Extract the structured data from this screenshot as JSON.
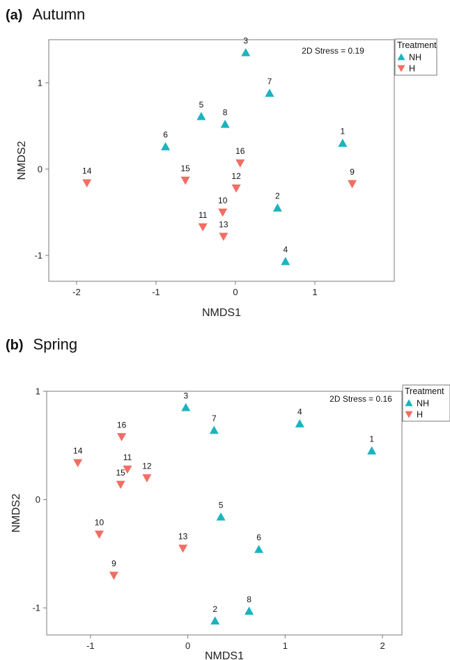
{
  "colors": {
    "NH": "#1ab4bf",
    "H": "#f26d64"
  },
  "chart_data": [
    {
      "type": "scatter",
      "panel_tag": "(a)",
      "title": "Autumn",
      "xlabel": "NMDS1",
      "ylabel": "NMDS2",
      "xlim": [
        -2.35,
        2.0
      ],
      "ylim": [
        -1.3,
        1.5
      ],
      "xticks": [
        -2,
        -1,
        0,
        1
      ],
      "yticks": [
        -1,
        0,
        1
      ],
      "annotation": "2D Stress = 0.19",
      "legend": {
        "title": "Treatment",
        "position": "outside-top-right",
        "entries": [
          "NH",
          "H"
        ]
      },
      "series": [
        {
          "name": "NH",
          "marker": "triangle-up",
          "points": [
            {
              "label": "1",
              "x": 1.35,
              "y": 0.3
            },
            {
              "label": "2",
              "x": 0.53,
              "y": -0.45
            },
            {
              "label": "3",
              "x": 0.13,
              "y": 1.35
            },
            {
              "label": "4",
              "x": 0.63,
              "y": -1.07
            },
            {
              "label": "5",
              "x": -0.43,
              "y": 0.61
            },
            {
              "label": "6",
              "x": -0.88,
              "y": 0.26
            },
            {
              "label": "7",
              "x": 0.43,
              "y": 0.88
            },
            {
              "label": "8",
              "x": -0.13,
              "y": 0.52
            }
          ]
        },
        {
          "name": "H",
          "marker": "triangle-down",
          "points": [
            {
              "label": "9",
              "x": 1.47,
              "y": -0.17
            },
            {
              "label": "10",
              "x": -0.16,
              "y": -0.5
            },
            {
              "label": "11",
              "x": -0.41,
              "y": -0.67
            },
            {
              "label": "12",
              "x": 0.01,
              "y": -0.22
            },
            {
              "label": "13",
              "x": -0.15,
              "y": -0.78
            },
            {
              "label": "14",
              "x": -1.87,
              "y": -0.16
            },
            {
              "label": "15",
              "x": -0.63,
              "y": -0.13
            },
            {
              "label": "16",
              "x": 0.06,
              "y": 0.07
            }
          ]
        }
      ]
    },
    {
      "type": "scatter",
      "panel_tag": "(b)",
      "title": "Spring",
      "xlabel": "NMDS1",
      "ylabel": "NMDS2",
      "xlim": [
        -1.45,
        2.2
      ],
      "ylim": [
        -1.25,
        1.0
      ],
      "xticks": [
        -1,
        0,
        1,
        2
      ],
      "yticks": [
        -1,
        0,
        1
      ],
      "annotation": "2D Stress = 0.16",
      "legend": {
        "title": "Treatment",
        "position": "outside-top-right",
        "entries": [
          "NH",
          "H"
        ]
      },
      "series": [
        {
          "name": "NH",
          "marker": "triangle-up",
          "points": [
            {
              "label": "1",
              "x": 1.89,
              "y": 0.45
            },
            {
              "label": "2",
              "x": 0.28,
              "y": -1.12
            },
            {
              "label": "3",
              "x": -0.02,
              "y": 0.85
            },
            {
              "label": "4",
              "x": 1.15,
              "y": 0.7
            },
            {
              "label": "5",
              "x": 0.34,
              "y": -0.16
            },
            {
              "label": "6",
              "x": 0.73,
              "y": -0.46
            },
            {
              "label": "7",
              "x": 0.27,
              "y": 0.64
            },
            {
              "label": "8",
              "x": 0.63,
              "y": -1.03
            }
          ]
        },
        {
          "name": "H",
          "marker": "triangle-down",
          "points": [
            {
              "label": "9",
              "x": -0.76,
              "y": -0.7
            },
            {
              "label": "10",
              "x": -0.91,
              "y": -0.32
            },
            {
              "label": "11",
              "x": -0.62,
              "y": 0.28
            },
            {
              "label": "12",
              "x": -0.42,
              "y": 0.2
            },
            {
              "label": "13",
              "x": -0.05,
              "y": -0.45
            },
            {
              "label": "14",
              "x": -1.13,
              "y": 0.34
            },
            {
              "label": "15",
              "x": -0.69,
              "y": 0.14
            },
            {
              "label": "16",
              "x": -0.68,
              "y": 0.58
            }
          ]
        }
      ]
    }
  ]
}
